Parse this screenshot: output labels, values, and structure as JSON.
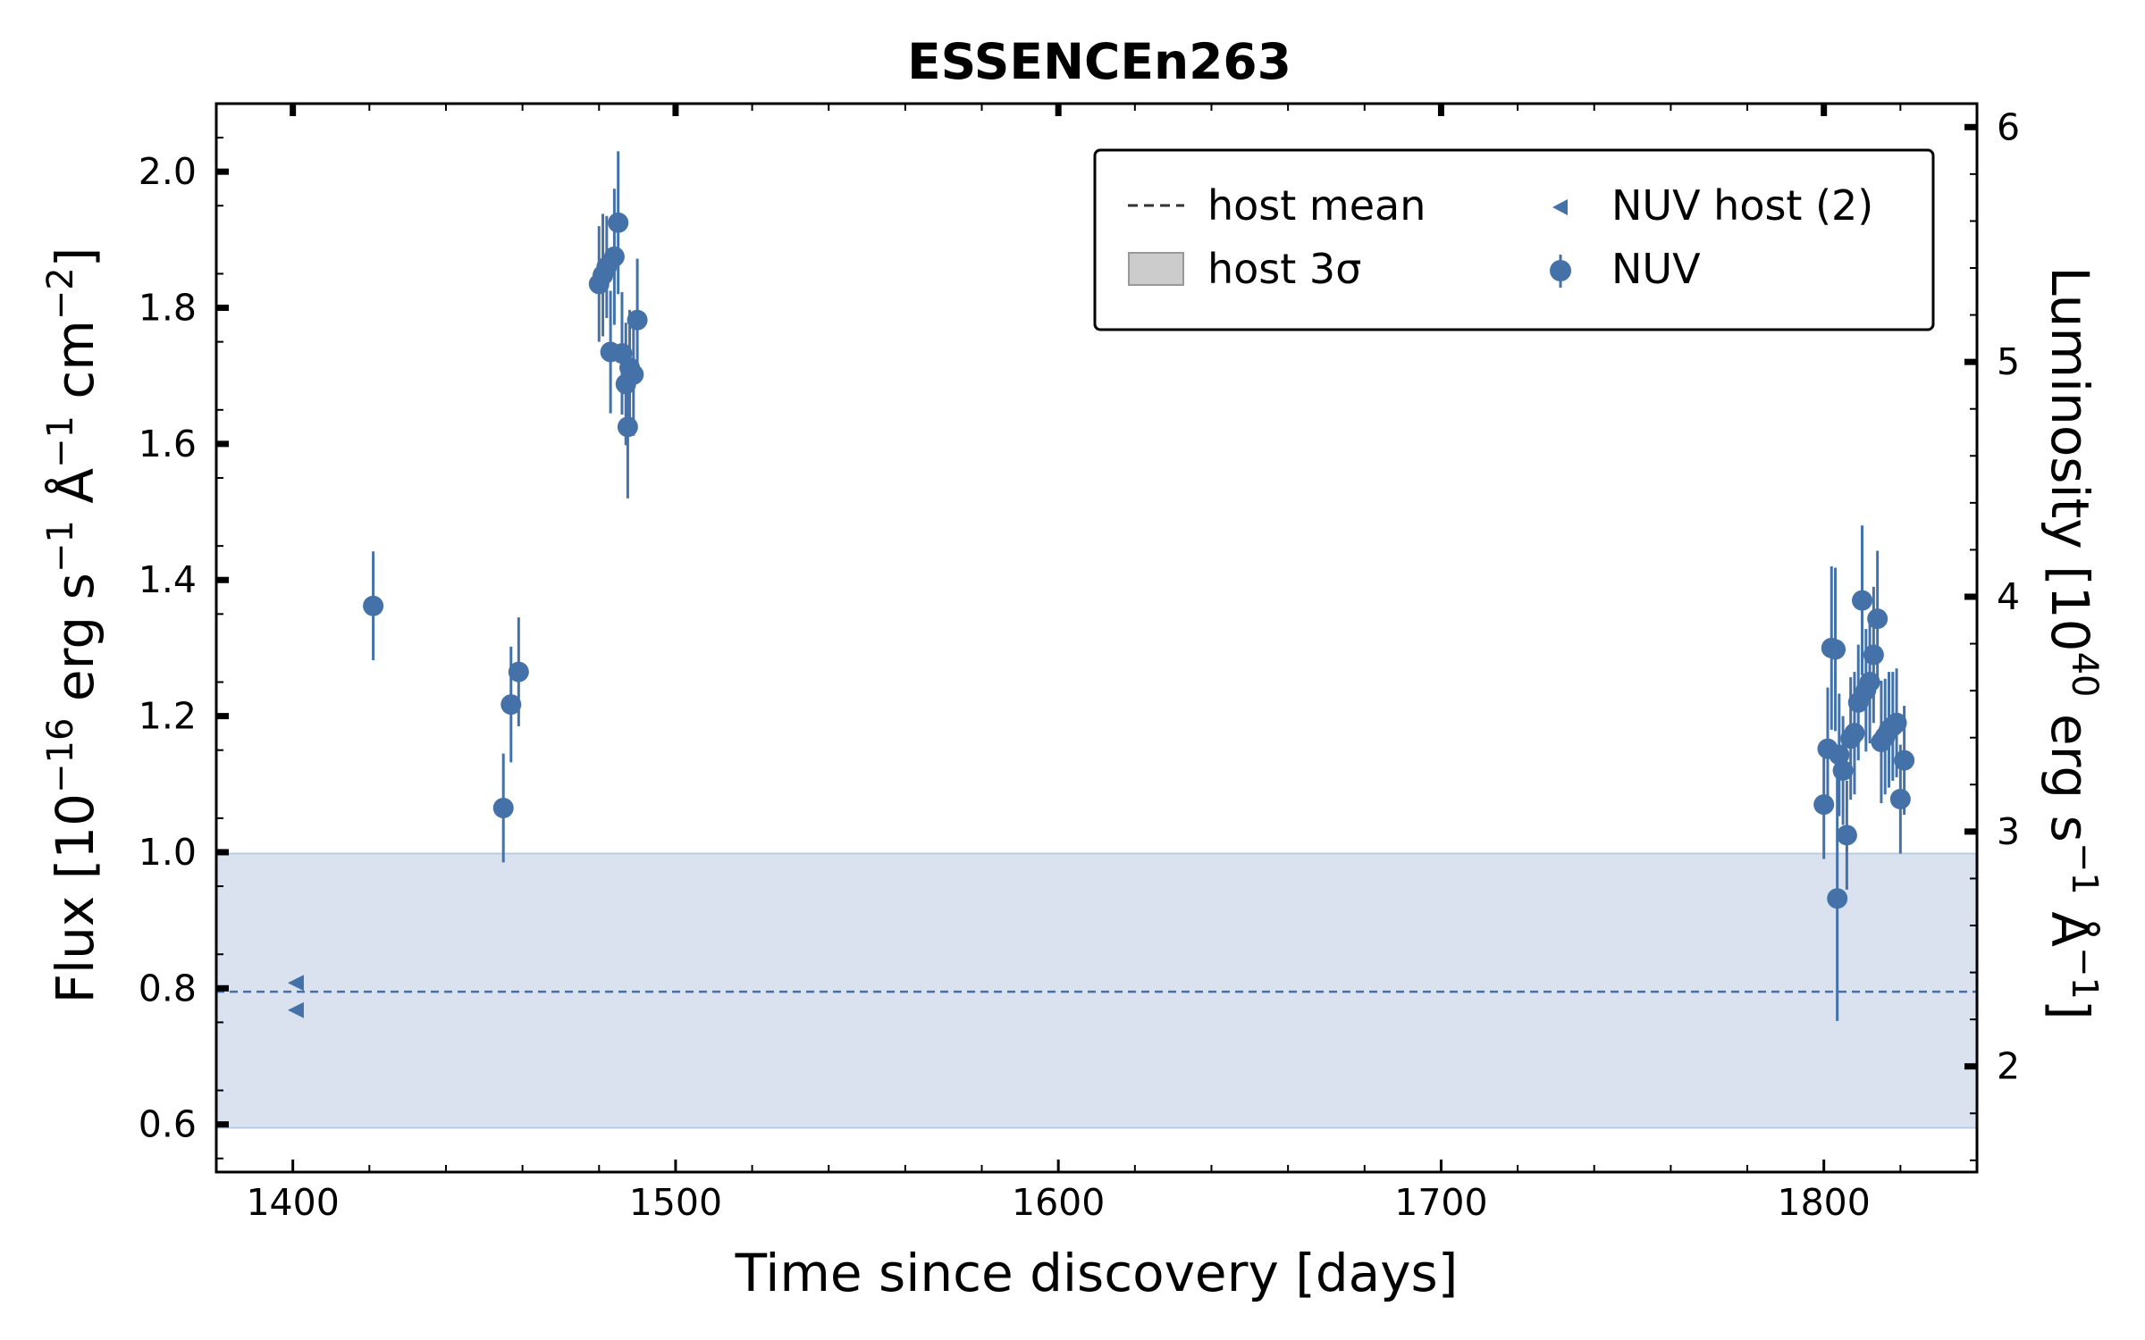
{
  "chart_data": {
    "type": "scatter",
    "title": "ESSENCEn263",
    "xlabel": "Time since discovery [days]",
    "ylabel": {
      "base": "Flux [10",
      "exp1": "−16",
      "mid1": " erg s",
      "exp2": "−1",
      "mid2": " Å",
      "exp3": "−1",
      "mid3": " cm",
      "exp4": "−2",
      "end": "]"
    },
    "y2label": {
      "base": "Luminosity [10",
      "exp1": "40",
      "mid1": " erg s",
      "exp2": "−1",
      "mid2": " Å",
      "exp3": "−1",
      "end": "]"
    },
    "xlim": [
      1380,
      1840
    ],
    "ylim": [
      0.53,
      2.1
    ],
    "y2lim": [
      1.55,
      6.1
    ],
    "x_ticks": [
      1400,
      1500,
      1600,
      1700,
      1800
    ],
    "x_tick_labels": [
      "1400",
      "1500",
      "1600",
      "1700",
      "1800"
    ],
    "y_ticks": [
      0.6,
      0.8,
      1.0,
      1.2,
      1.4,
      1.6,
      1.8,
      2.0
    ],
    "y_tick_labels": [
      "0.6",
      "0.8",
      "1.0",
      "1.2",
      "1.4",
      "1.6",
      "1.8",
      "2.0"
    ],
    "y2_ticks": [
      2,
      3,
      4,
      5,
      6
    ],
    "y2_tick_labels": [
      "2",
      "3",
      "4",
      "5",
      "6"
    ],
    "host_mean": 0.795,
    "host_band": [
      0.595,
      0.998
    ],
    "legend": {
      "placement": "top-right",
      "entries": [
        "host mean",
        "host 3σ",
        "NUV host (2)",
        "NUV"
      ]
    },
    "colors": {
      "nuv": "#4472a8",
      "band": "#d9e2ee",
      "band_edge": "#b8cce4"
    },
    "series": [
      {
        "name": "NUV host (2)",
        "marker": "triangle-left",
        "points": [
          {
            "x": 1401,
            "y": 0.808
          },
          {
            "x": 1401,
            "y": 0.768
          }
        ]
      },
      {
        "name": "NUV",
        "marker": "circle",
        "points": [
          {
            "x": 1421,
            "y": 1.362,
            "err": 0.08
          },
          {
            "x": 1455,
            "y": 1.065,
            "err": 0.08
          },
          {
            "x": 1457,
            "y": 1.217,
            "err": 0.085
          },
          {
            "x": 1459,
            "y": 1.265,
            "err": 0.08
          },
          {
            "x": 1480,
            "y": 1.835,
            "err": 0.085
          },
          {
            "x": 1481,
            "y": 1.848,
            "err": 0.09
          },
          {
            "x": 1482,
            "y": 1.86,
            "err": 0.075
          },
          {
            "x": 1483,
            "y": 1.735,
            "err": 0.09
          },
          {
            "x": 1484,
            "y": 1.875,
            "err": 0.1
          },
          {
            "x": 1485,
            "y": 1.925,
            "err": 0.105
          },
          {
            "x": 1486,
            "y": 1.733,
            "err": 0.09
          },
          {
            "x": 1487,
            "y": 1.688,
            "err": 0.09
          },
          {
            "x": 1487.5,
            "y": 1.625,
            "err": 0.105
          },
          {
            "x": 1488,
            "y": 1.712,
            "err": 0.085
          },
          {
            "x": 1489,
            "y": 1.702,
            "err": 0.09
          },
          {
            "x": 1490,
            "y": 1.782,
            "err": 0.09
          },
          {
            "x": 1800,
            "y": 1.07,
            "err": 0.08
          },
          {
            "x": 1801,
            "y": 1.152,
            "err": 0.09
          },
          {
            "x": 1802,
            "y": 1.3,
            "err": 0.12
          },
          {
            "x": 1803,
            "y": 1.298,
            "err": 0.12
          },
          {
            "x": 1803.5,
            "y": 0.932,
            "err": 0.18
          },
          {
            "x": 1804,
            "y": 1.143,
            "err": 0.09
          },
          {
            "x": 1805,
            "y": 1.12,
            "err": 0.08
          },
          {
            "x": 1806,
            "y": 1.025,
            "err": 0.08
          },
          {
            "x": 1807,
            "y": 1.167,
            "err": 0.09
          },
          {
            "x": 1808,
            "y": 1.175,
            "err": 0.09
          },
          {
            "x": 1809,
            "y": 1.22,
            "err": 0.085
          },
          {
            "x": 1810,
            "y": 1.37,
            "err": 0.11
          },
          {
            "x": 1811,
            "y": 1.238,
            "err": 0.09
          },
          {
            "x": 1812,
            "y": 1.25,
            "err": 0.09
          },
          {
            "x": 1813,
            "y": 1.29,
            "err": 0.1
          },
          {
            "x": 1814,
            "y": 1.343,
            "err": 0.1
          },
          {
            "x": 1815,
            "y": 1.162,
            "err": 0.09
          },
          {
            "x": 1816,
            "y": 1.17,
            "err": 0.085
          },
          {
            "x": 1817,
            "y": 1.18,
            "err": 0.085
          },
          {
            "x": 1818,
            "y": 1.185,
            "err": 0.08
          },
          {
            "x": 1819,
            "y": 1.19,
            "err": 0.08
          },
          {
            "x": 1820,
            "y": 1.078,
            "err": 0.08
          },
          {
            "x": 1821,
            "y": 1.135,
            "err": 0.08
          }
        ]
      }
    ]
  }
}
